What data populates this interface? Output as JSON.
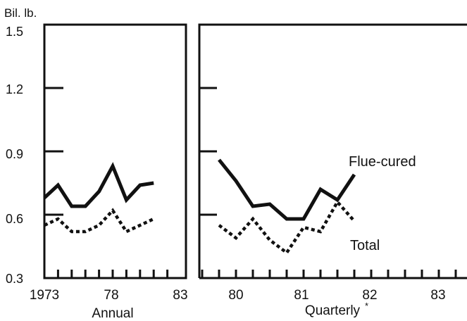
{
  "chart_data": [
    {
      "type": "line",
      "panel": "annual",
      "ylabel": "Bil. lb.",
      "xlabel": "Annual",
      "ylim": [
        0.3,
        1.5
      ],
      "yticks": [
        "1.5",
        "1.2",
        "0.9",
        "0.6",
        "0.3"
      ],
      "xticks": [
        "1973",
        "78",
        "83"
      ],
      "x": [
        1973,
        1974,
        1975,
        1976,
        1977,
        1978,
        1979,
        1980,
        1981
      ],
      "series": [
        {
          "name": "Flue-cured",
          "style": "solid",
          "values": [
            0.68,
            0.74,
            0.64,
            0.64,
            0.71,
            0.83,
            0.67,
            0.74,
            0.75
          ]
        },
        {
          "name": "Total",
          "style": "dotted",
          "values": [
            0.55,
            0.58,
            0.52,
            0.52,
            0.55,
            0.62,
            0.52,
            0.55,
            0.58
          ]
        }
      ]
    },
    {
      "type": "line",
      "panel": "quarterly",
      "xlabel": "Quarterly",
      "xlabel_mark": "*",
      "ylim": [
        0.3,
        1.5
      ],
      "xticks": [
        "80",
        "81",
        "82",
        "83"
      ],
      "x": [
        1979.75,
        1980.0,
        1980.25,
        1980.5,
        1980.75,
        1981.0,
        1981.25,
        1981.5,
        1981.75
      ],
      "series": [
        {
          "name": "Flue-cured",
          "style": "solid",
          "values": [
            0.86,
            0.76,
            0.64,
            0.65,
            0.58,
            0.58,
            0.72,
            0.67,
            0.79
          ]
        },
        {
          "name": "Total",
          "style": "dotted",
          "values": [
            0.55,
            0.49,
            0.58,
            0.48,
            0.42,
            0.54,
            0.52,
            0.66,
            0.57
          ]
        }
      ],
      "labels": [
        "Flue-cured",
        "Total"
      ]
    }
  ],
  "colors": {
    "line": "#111111",
    "background": "#ffffff"
  }
}
